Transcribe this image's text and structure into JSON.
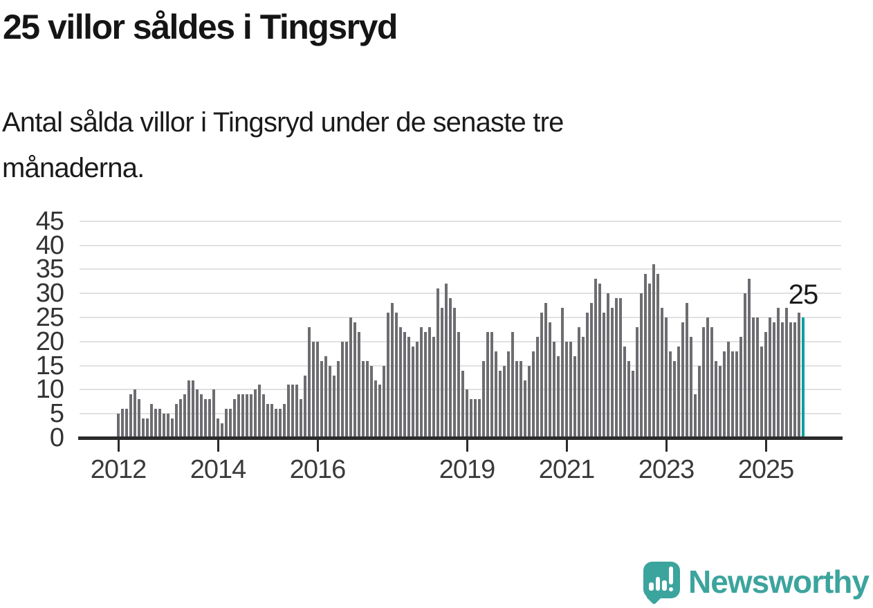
{
  "title": "25 villor såldes i Tingsryd",
  "subtitle": "Antal sålda villor i Tingsryd under de senaste tre månaderna.",
  "subtitle_lines": [
    "Antal sålda villor i Tingsryd under de senaste tre",
    "månaderna."
  ],
  "chart_data": {
    "type": "bar",
    "title": "",
    "xlabel": "",
    "ylabel": "",
    "x_start_month": "2012-01",
    "x_end_month": "2025-10",
    "values": [
      5,
      6,
      6,
      9,
      10,
      8,
      4,
      4,
      7,
      6,
      6,
      5,
      5,
      4,
      7,
      8,
      9,
      12,
      12,
      10,
      9,
      8,
      8,
      10,
      4,
      3,
      6,
      6,
      8,
      9,
      9,
      9,
      9,
      10,
      11,
      9,
      7,
      7,
      6,
      6,
      7,
      11,
      11,
      11,
      8,
      13,
      23,
      20,
      20,
      16,
      17,
      15,
      13,
      16,
      20,
      20,
      25,
      24,
      22,
      16,
      16,
      15,
      12,
      11,
      15,
      26,
      28,
      26,
      23,
      22,
      21,
      19,
      20,
      23,
      22,
      23,
      21,
      31,
      27,
      32,
      29,
      27,
      22,
      14,
      10,
      8,
      8,
      8,
      16,
      22,
      22,
      18,
      14,
      15,
      18,
      22,
      16,
      16,
      12,
      15,
      18,
      21,
      26,
      28,
      24,
      20,
      17,
      27,
      20,
      20,
      17,
      23,
      21,
      26,
      28,
      33,
      32,
      26,
      30,
      27,
      29,
      29,
      19,
      16,
      14,
      23,
      30,
      34,
      32,
      36,
      34,
      27,
      25,
      18,
      16,
      19,
      24,
      28,
      21,
      9,
      15,
      23,
      25,
      23,
      16,
      15,
      18,
      20,
      18,
      18,
      21,
      30,
      33,
      25,
      25,
      19,
      22,
      25,
      24,
      27,
      24,
      27,
      24,
      24,
      26,
      25
    ],
    "y_ticks": [
      0,
      5,
      10,
      15,
      20,
      25,
      30,
      35,
      40,
      45
    ],
    "ylim": [
      0,
      47
    ],
    "x_ticks": [
      {
        "label": "2012",
        "month_index": 0
      },
      {
        "label": "2014",
        "month_index": 24
      },
      {
        "label": "2016",
        "month_index": 48
      },
      {
        "label": "2019",
        "month_index": 84
      },
      {
        "label": "2021",
        "month_index": 108
      },
      {
        "label": "2023",
        "month_index": 132
      },
      {
        "label": "2025",
        "month_index": 156
      }
    ],
    "grid": true,
    "legend": false,
    "bar_color": "#6d6d71",
    "highlight_last_bar": true,
    "highlight_color": "#00a0a0",
    "annotation": {
      "text": "25",
      "month_index": 165
    }
  },
  "footer": {
    "brand": "Newsworthy",
    "brand_color": "#3ba49d"
  }
}
